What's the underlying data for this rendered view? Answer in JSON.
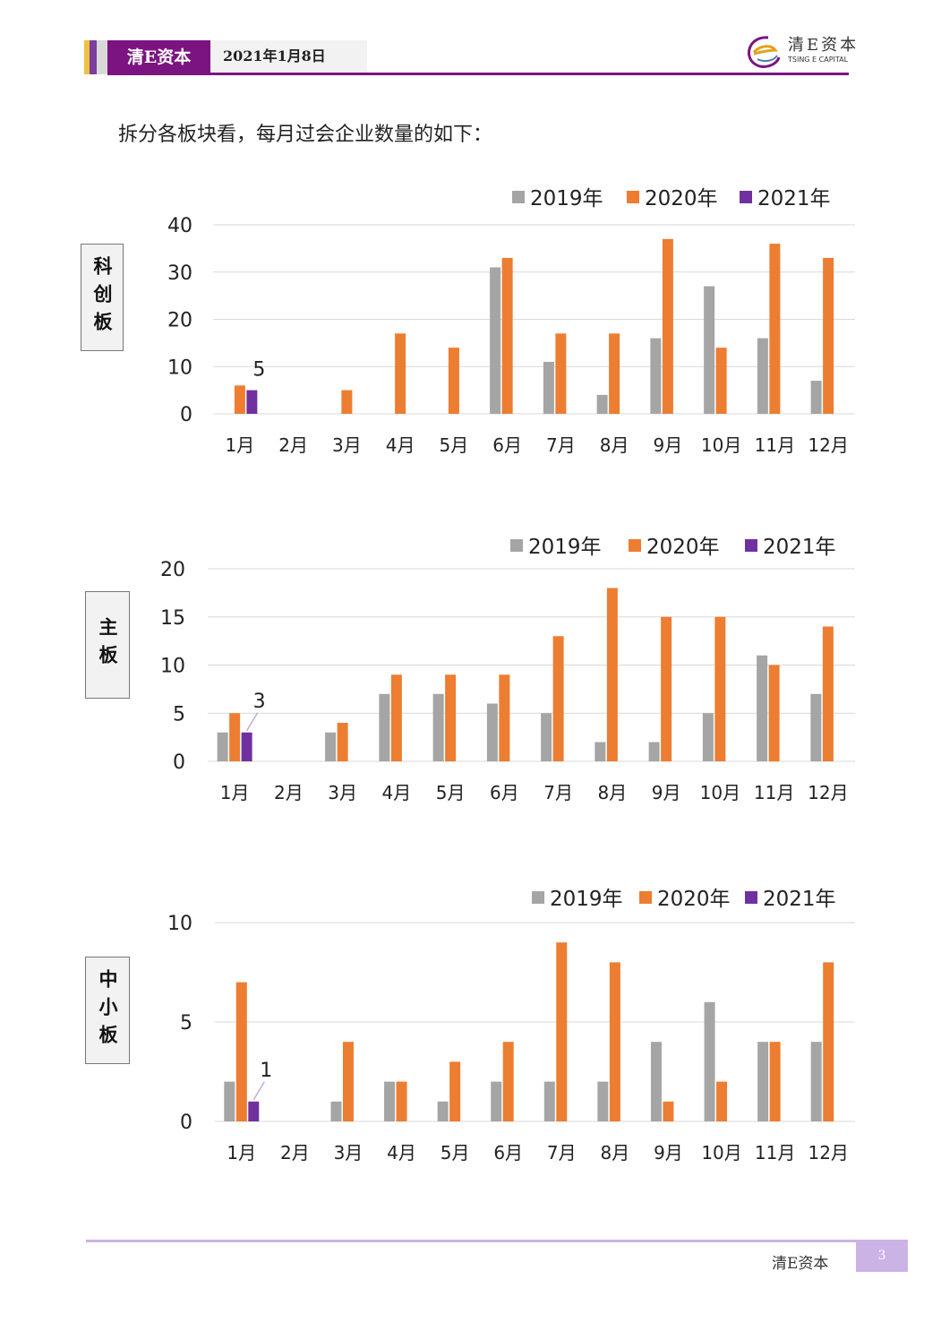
{
  "header": {
    "brand": "清E资本",
    "date": "2021年1月8日",
    "logo_cn": "清E资本",
    "logo_en": "TSING E CAPITAL",
    "accent_color": "#7b1480"
  },
  "intro_text": "拆分各板块看，每月过会企业数量的如下：",
  "footer": {
    "brand": "清E资本",
    "page_number": "3"
  },
  "colors": {
    "2019": "#a5a5a5",
    "2020": "#ed7d31",
    "2021": "#7030a0"
  },
  "chart_data": [
    {
      "type": "bar",
      "board_label": "科创板",
      "categories": [
        "1月",
        "2月",
        "3月",
        "4月",
        "5月",
        "6月",
        "7月",
        "8月",
        "9月",
        "10月",
        "11月",
        "12月"
      ],
      "series": [
        {
          "name": "2019年",
          "values": [
            0,
            0,
            0,
            0,
            0,
            31,
            11,
            4,
            16,
            27,
            16,
            7
          ]
        },
        {
          "name": "2020年",
          "values": [
            6,
            0,
            5,
            17,
            14,
            33,
            17,
            17,
            37,
            14,
            36,
            33
          ]
        },
        {
          "name": "2021年",
          "values": [
            5,
            0,
            0,
            0,
            0,
            0,
            0,
            0,
            0,
            0,
            0,
            0
          ]
        }
      ],
      "ylim": [
        0,
        40
      ],
      "yticks": [
        0,
        10,
        20,
        30,
        40
      ],
      "annotation": {
        "category": "1月",
        "series": "2021年",
        "text": "5"
      },
      "legend": "top-right",
      "grid": true
    },
    {
      "type": "bar",
      "board_label": "主板",
      "categories": [
        "1月",
        "2月",
        "3月",
        "4月",
        "5月",
        "6月",
        "7月",
        "8月",
        "9月",
        "10月",
        "11月",
        "12月"
      ],
      "series": [
        {
          "name": "2019年",
          "values": [
            3,
            0,
            3,
            7,
            7,
            6,
            5,
            2,
            2,
            5,
            11,
            7
          ]
        },
        {
          "name": "2020年",
          "values": [
            5,
            0,
            4,
            9,
            9,
            9,
            13,
            18,
            15,
            15,
            10,
            14
          ]
        },
        {
          "name": "2021年",
          "values": [
            3,
            0,
            0,
            0,
            0,
            0,
            0,
            0,
            0,
            0,
            0,
            0
          ]
        }
      ],
      "ylim": [
        0,
        20
      ],
      "yticks": [
        0,
        5,
        10,
        15,
        20
      ],
      "annotation": {
        "category": "1月",
        "series": "2021年",
        "text": "3"
      },
      "legend": "top-right",
      "grid": true
    },
    {
      "type": "bar",
      "board_label": "中小板",
      "categories": [
        "1月",
        "2月",
        "3月",
        "4月",
        "5月",
        "6月",
        "7月",
        "8月",
        "9月",
        "10月",
        "11月",
        "12月"
      ],
      "series": [
        {
          "name": "2019年",
          "values": [
            2,
            0,
            1,
            2,
            1,
            2,
            2,
            2,
            4,
            6,
            4,
            4
          ]
        },
        {
          "name": "2020年",
          "values": [
            7,
            0,
            4,
            2,
            3,
            4,
            9,
            8,
            1,
            2,
            4,
            8
          ]
        },
        {
          "name": "2021年",
          "values": [
            1,
            0,
            0,
            0,
            0,
            0,
            0,
            0,
            0,
            0,
            0,
            0
          ]
        }
      ],
      "ylim": [
        0,
        10
      ],
      "yticks": [
        0,
        5,
        10
      ],
      "annotation": {
        "category": "1月",
        "series": "2021年",
        "text": "1"
      },
      "legend": "top-right",
      "grid": true
    }
  ]
}
